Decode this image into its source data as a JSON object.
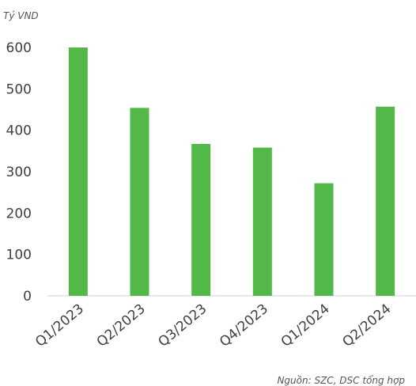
{
  "chart_data": {
    "type": "bar",
    "unit_label": "Tỷ VND",
    "categories": [
      "Q1/2023",
      "Q2/2023",
      "Q3/2023",
      "Q4/2023",
      "Q1/2024",
      "Q2/2024"
    ],
    "values": [
      600,
      454,
      367,
      358,
      272,
      457
    ],
    "ylim": [
      0,
      600
    ],
    "yticks": [
      0,
      100,
      200,
      300,
      400,
      500,
      600
    ],
    "bar_color": "#52b848",
    "grid": false,
    "legend": "none",
    "source": "Nguồn: SZC, DSC tổng hợp"
  }
}
